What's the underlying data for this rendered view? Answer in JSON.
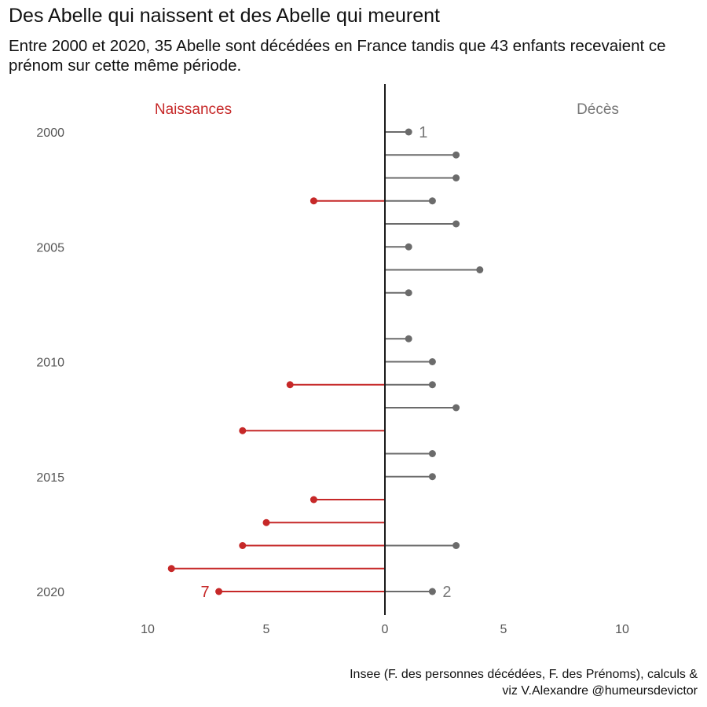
{
  "chart_data": {
    "type": "bar",
    "title": "Des Abelle qui naissent et des Abelle qui meurent",
    "subtitle": "Entre 2000 et 2020, 35 Abelle sont décédées en France tandis que 43 enfants recevaient ce prénom sur cette même période.",
    "caption_lines": [
      "Insee (F. des personnes décédées, F. des Prénoms), calculs &",
      "viz V.Alexandre @humeursdevictor"
    ],
    "categories": [
      2000,
      2001,
      2002,
      2003,
      2004,
      2005,
      2006,
      2007,
      2008,
      2009,
      2010,
      2011,
      2012,
      2013,
      2014,
      2015,
      2016,
      2017,
      2018,
      2019,
      2020
    ],
    "series": [
      {
        "name": "Naissances",
        "color": "#c62828",
        "direction": "left",
        "values": [
          0,
          0,
          0,
          3,
          0,
          0,
          0,
          0,
          0,
          0,
          0,
          4,
          0,
          6,
          0,
          0,
          3,
          5,
          6,
          9,
          7
        ]
      },
      {
        "name": "Décès",
        "color": "#6b6b6b",
        "direction": "right",
        "values": [
          1,
          3,
          3,
          2,
          3,
          1,
          4,
          1,
          0,
          1,
          2,
          2,
          3,
          0,
          2,
          2,
          0,
          0,
          3,
          0,
          2
        ]
      }
    ],
    "y_tick_labels": [
      "2000",
      "2005",
      "2010",
      "2015",
      "2020"
    ],
    "x_tick_labels": [
      "10",
      "5",
      "0",
      "5",
      "10"
    ],
    "x_tick_values": [
      -10,
      -5,
      0,
      5,
      10
    ],
    "xlim": [
      -10,
      10
    ],
    "end_labels": [
      {
        "series": "Décès",
        "year": 2000,
        "text": "1"
      },
      {
        "series": "Naissances",
        "year": 2020,
        "text": "7"
      },
      {
        "series": "Décès",
        "year": 2020,
        "text": "2"
      }
    ],
    "grid": false,
    "legend": "top"
  }
}
